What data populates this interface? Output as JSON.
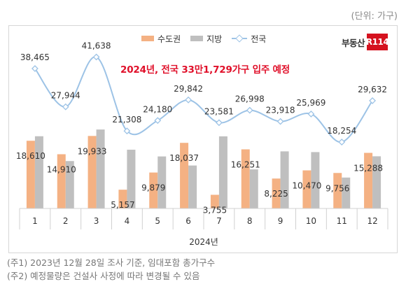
{
  "unit_label": "(단위: 가구)",
  "headline": "2024년, 전국 33만1,729가구 입주 예정",
  "logo": {
    "text": "부동산",
    "mark": "R114"
  },
  "legend": [
    {
      "name": "수도권",
      "color": "#f4b183",
      "kind": "bar"
    },
    {
      "name": "지방",
      "color": "#bfbfbf",
      "kind": "bar"
    },
    {
      "name": "전국",
      "color": "#9dc3e6",
      "kind": "line"
    }
  ],
  "chart_data": {
    "type": "bar",
    "categories": [
      "1",
      "2",
      "3",
      "4",
      "5",
      "6",
      "7",
      "8",
      "9",
      "10",
      "11",
      "12"
    ],
    "xlabel": "2024년",
    "ylabel": "",
    "ylim": [
      0,
      45000
    ],
    "series": [
      {
        "name": "수도권",
        "type": "bar",
        "color": "#f4b183",
        "values": [
          18610,
          14910,
          19933,
          5157,
          9879,
          18037,
          3755,
          16251,
          8225,
          10470,
          9756,
          15288
        ]
      },
      {
        "name": "지방",
        "type": "bar",
        "color": "#bfbfbf",
        "values": [
          19855,
          13034,
          21705,
          16151,
          14301,
          11805,
          19826,
          10747,
          15693,
          15499,
          8498,
          14344
        ]
      },
      {
        "name": "전국",
        "type": "line",
        "color": "#9dc3e6",
        "values": [
          38465,
          27944,
          41638,
          21308,
          24180,
          29842,
          23581,
          26998,
          23918,
          25969,
          18254,
          29632
        ]
      }
    ],
    "data_labels": {
      "수도권": [
        "18,610",
        "14,910",
        "19,933",
        "5,157",
        "9,879",
        "18,037",
        "3,755",
        "16,251",
        "8,225",
        "10,470",
        "9,756",
        "15,288"
      ],
      "전국": [
        "38,465",
        "27,944",
        "41,638",
        "21,308",
        "24,180",
        "29,842",
        "23,581",
        "26,998",
        "23,918",
        "25,969",
        "18,254",
        "29,632"
      ]
    }
  },
  "notes": [
    "(주1) 2023년 12월 28일 조사 기준, 임대포함 총가구수",
    "(주2) 예정물량은 건설사 사정에 따라 변경될 수 있음"
  ]
}
